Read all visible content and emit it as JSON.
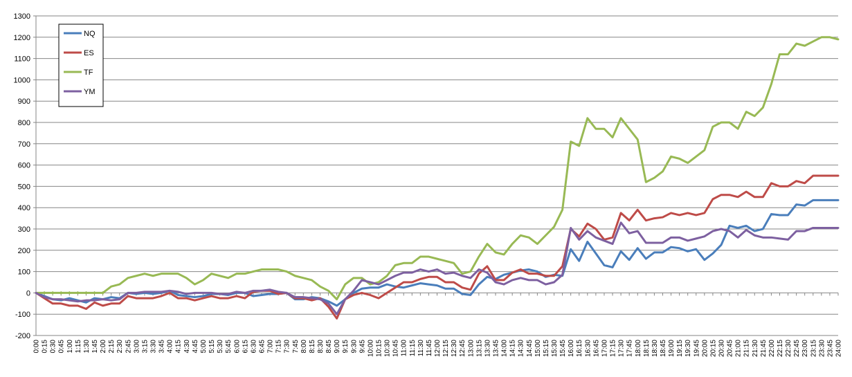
{
  "chart_data": {
    "type": "line",
    "title": "",
    "xlabel": "",
    "ylabel": "",
    "ylim": [
      -200,
      1300
    ],
    "ytick_step": 100,
    "grid": true,
    "legend": "top-left",
    "x": [
      "0:00",
      "0:15",
      "0:30",
      "0:45",
      "1:00",
      "1:15",
      "1:30",
      "1:45",
      "2:00",
      "2:15",
      "2:30",
      "2:45",
      "3:00",
      "3:15",
      "3:30",
      "3:45",
      "4:00",
      "4:15",
      "4:30",
      "4:45",
      "5:00",
      "5:15",
      "5:30",
      "5:45",
      "6:00",
      "6:15",
      "6:30",
      "6:45",
      "7:00",
      "7:15",
      "7:30",
      "7:45",
      "8:00",
      "8:15",
      "8:30",
      "8:45",
      "9:00",
      "9:15",
      "9:30",
      "9:45",
      "10:00",
      "10:15",
      "10:30",
      "10:45",
      "11:00",
      "11:15",
      "11:30",
      "11:45",
      "12:00",
      "12:15",
      "12:30",
      "12:45",
      "13:00",
      "13:15",
      "13:30",
      "13:45",
      "14:00",
      "14:15",
      "14:30",
      "14:45",
      "15:00",
      "15:15",
      "15:30",
      "15:45",
      "16:00",
      "16:15",
      "16:30",
      "16:45",
      "17:00",
      "17:15",
      "17:30",
      "17:45",
      "18:00",
      "18:15",
      "18:30",
      "18:45",
      "19:00",
      "19:15",
      "19:30",
      "19:45",
      "20:00",
      "20:15",
      "20:30",
      "20:45",
      "21:00",
      "21:15",
      "21:30",
      "21:45",
      "22:00",
      "22:15",
      "22:30",
      "22:45",
      "23:00",
      "23:15",
      "23:30",
      "23:45",
      "24:00"
    ],
    "series": [
      {
        "name": "NQ",
        "color": "#4a7ebb",
        "values": [
          0,
          -15,
          -30,
          -35,
          -25,
          -35,
          -45,
          -25,
          -30,
          -20,
          -25,
          0,
          -5,
          0,
          -5,
          0,
          10,
          -10,
          -15,
          -20,
          -15,
          -5,
          -5,
          -10,
          0,
          0,
          -15,
          -10,
          -5,
          -5,
          0,
          -30,
          -30,
          -20,
          -25,
          -40,
          -60,
          -30,
          0,
          20,
          25,
          25,
          40,
          30,
          25,
          35,
          45,
          40,
          35,
          20,
          20,
          -5,
          -10,
          40,
          75,
          65,
          85,
          95,
          105,
          110,
          100,
          75,
          85,
          80,
          205,
          150,
          240,
          185,
          130,
          120,
          195,
          155,
          210,
          160,
          190,
          190,
          215,
          210,
          195,
          205,
          155,
          185,
          225,
          315,
          305,
          315,
          290,
          300,
          370,
          365,
          365,
          415,
          410,
          435,
          435,
          435,
          435
        ]
      },
      {
        "name": "ES",
        "color": "#be4b48",
        "values": [
          0,
          -25,
          -50,
          -50,
          -60,
          -60,
          -75,
          -45,
          -60,
          -50,
          -50,
          -15,
          -25,
          -25,
          -25,
          -15,
          0,
          -25,
          -25,
          -35,
          -25,
          -15,
          -25,
          -25,
          -15,
          -25,
          5,
          10,
          10,
          -5,
          0,
          -25,
          -25,
          -35,
          -25,
          -65,
          -120,
          -30,
          -10,
          0,
          -10,
          -25,
          0,
          25,
          50,
          50,
          65,
          75,
          75,
          50,
          50,
          25,
          15,
          90,
          125,
          60,
          60,
          95,
          110,
          90,
          90,
          80,
          80,
          125,
          300,
          265,
          325,
          300,
          250,
          260,
          375,
          340,
          390,
          340,
          350,
          355,
          375,
          365,
          375,
          365,
          375,
          440,
          460,
          460,
          450,
          475,
          450,
          450,
          515,
          500,
          500,
          525,
          515,
          550,
          550,
          550,
          550
        ]
      },
      {
        "name": "TF",
        "color": "#98b954",
        "values": [
          0,
          0,
          0,
          0,
          0,
          0,
          0,
          0,
          0,
          30,
          40,
          70,
          80,
          90,
          80,
          90,
          90,
          90,
          70,
          40,
          60,
          90,
          80,
          70,
          90,
          90,
          100,
          110,
          110,
          110,
          100,
          80,
          70,
          60,
          30,
          10,
          -30,
          40,
          70,
          70,
          40,
          50,
          80,
          130,
          140,
          140,
          170,
          170,
          160,
          150,
          140,
          90,
          100,
          170,
          230,
          190,
          180,
          230,
          270,
          260,
          230,
          270,
          310,
          390,
          710,
          690,
          820,
          770,
          770,
          730,
          820,
          770,
          720,
          520,
          540,
          570,
          640,
          630,
          610,
          640,
          670,
          780,
          800,
          800,
          770,
          850,
          830,
          870,
          980,
          1120,
          1120,
          1170,
          1160,
          1180,
          1200,
          1200,
          1190
        ]
      },
      {
        "name": "YM",
        "color": "#7d60a0",
        "values": [
          0,
          -20,
          -30,
          -30,
          -35,
          -40,
          -35,
          -35,
          -30,
          -35,
          -30,
          0,
          0,
          5,
          5,
          5,
          10,
          5,
          -5,
          0,
          0,
          0,
          -5,
          -5,
          5,
          0,
          10,
          10,
          15,
          5,
          0,
          -20,
          -20,
          -25,
          -30,
          -50,
          -100,
          -30,
          10,
          60,
          50,
          40,
          60,
          80,
          95,
          95,
          110,
          100,
          110,
          90,
          95,
          80,
          70,
          110,
          95,
          50,
          40,
          60,
          70,
          60,
          60,
          40,
          50,
          85,
          305,
          250,
          290,
          260,
          245,
          230,
          330,
          280,
          290,
          235,
          235,
          235,
          260,
          260,
          245,
          255,
          265,
          290,
          300,
          290,
          260,
          295,
          270,
          260,
          260,
          255,
          250,
          290,
          290,
          305,
          305,
          305,
          305
        ]
      }
    ]
  }
}
